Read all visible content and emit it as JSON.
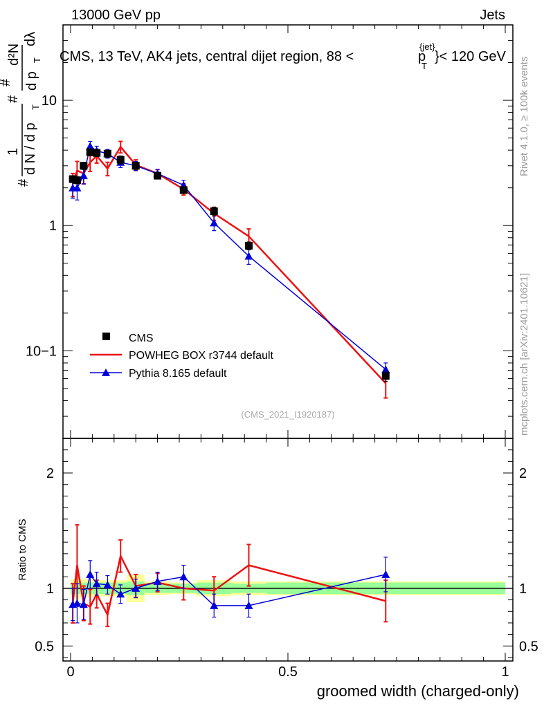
{
  "header": {
    "energy_label": "13000 GeV pp",
    "category_label": "Jets"
  },
  "plot_title": {
    "prefix": "CMS, 13 TeV, AK4 jets, central dijet region, 88 <",
    "p": "p",
    "sub_T": "T",
    "sup_jet": "{jet}",
    "suffix": "}< 120 GeV"
  },
  "side_labels": {
    "rivet": "Rivet 4.1.0, ≥ 100k events",
    "mcplots": "mcplots.cern.ch [arXiv:2401.10621]"
  },
  "watermark": "(CMS_2021_I1920187)",
  "ratio_ylabel": "Ratio to CMS",
  "colors": {
    "data": "#000000",
    "powheg": "#ee1111",
    "pythia": "#0000dd",
    "band_inner": "#99ff99",
    "band_outer": "#ffff99"
  },
  "chart_data": [
    {
      "type": "line",
      "scale": "log",
      "xlim": [
        0,
        1
      ],
      "ylim": [
        0.02,
        40
      ],
      "x_ticks": [
        "0",
        "0.5",
        "1"
      ],
      "y_ticks": [
        "10−1",
        "1",
        "10"
      ],
      "y_tick_values": [
        0.1,
        1,
        10
      ],
      "ylabel": "# 1/(dN/dpT #) d²N/(dpT dλ)",
      "ylabel_parts": {
        "hash": "#",
        "one": "1",
        "dN": "d N / d p",
        "T": "T",
        "d2N": "d²N",
        "dp": "d p",
        "dlam": "dλ"
      },
      "x": [
        0.005,
        0.015,
        0.03,
        0.045,
        0.06,
        0.085,
        0.115,
        0.15,
        0.2,
        0.26,
        0.33,
        0.41,
        0.725
      ],
      "series": [
        {
          "name": "CMS",
          "marker": "square",
          "values": [
            2.35,
            2.3,
            3.0,
            3.85,
            3.8,
            3.75,
            3.35,
            3.0,
            2.5,
            1.92,
            1.3,
            0.69,
            0.063
          ],
          "errors": [
            0.15,
            0.15,
            0.2,
            0.25,
            0.25,
            0.25,
            0.25,
            0.2,
            0.15,
            0.12,
            0.1,
            0.05,
            0.006
          ]
        },
        {
          "name": "POWHEG BOX r3744 default",
          "marker": "line",
          "values": [
            2.15,
            2.75,
            2.6,
            3.2,
            3.6,
            2.85,
            4.25,
            3.05,
            2.6,
            1.95,
            1.25,
            0.82,
            0.055
          ],
          "errors": [
            0.45,
            0.5,
            0.45,
            0.5,
            0.45,
            0.35,
            0.45,
            0.3,
            0.2,
            0.2,
            0.15,
            0.12,
            0.013
          ]
        },
        {
          "name": "Pythia 8.165 default",
          "marker": "triangle",
          "values": [
            2.0,
            2.0,
            2.5,
            4.3,
            3.95,
            3.75,
            3.2,
            3.0,
            2.6,
            2.1,
            1.05,
            0.57,
            0.071
          ],
          "errors": [
            0.35,
            0.4,
            0.35,
            0.4,
            0.35,
            0.3,
            0.3,
            0.25,
            0.2,
            0.2,
            0.14,
            0.08,
            0.009
          ]
        }
      ]
    },
    {
      "type": "line",
      "ylabel": "Ratio to CMS",
      "xlabel": "groomed width (charged-only)",
      "xlim": [
        0,
        1
      ],
      "ylim": [
        0.37,
        2.3
      ],
      "y_ticks": [
        "0.5",
        "1",
        "2"
      ],
      "y_tick_values": [
        0.5,
        1,
        2
      ],
      "x_ticks": [
        "0",
        "0.5",
        "1"
      ],
      "x": [
        0.005,
        0.015,
        0.03,
        0.045,
        0.06,
        0.085,
        0.115,
        0.15,
        0.2,
        0.26,
        0.33,
        0.41,
        0.725
      ],
      "series": [
        {
          "name": "POWHEG BOX r3744 default",
          "values": [
            0.87,
            1.2,
            0.87,
            0.84,
            0.95,
            0.77,
            1.28,
            1.02,
            1.05,
            1.0,
            0.98,
            1.2,
            0.89
          ],
          "errors": [
            0.17,
            0.35,
            0.15,
            0.15,
            0.12,
            0.1,
            0.14,
            0.1,
            0.08,
            0.1,
            0.12,
            0.18,
            0.18
          ]
        },
        {
          "name": "Pythia 8.165 default",
          "values": [
            0.86,
            0.87,
            0.86,
            1.12,
            1.04,
            1.03,
            0.95,
            1.0,
            1.06,
            1.1,
            0.85,
            0.85,
            1.12
          ],
          "errors": [
            0.14,
            0.17,
            0.13,
            0.12,
            0.1,
            0.08,
            0.08,
            0.08,
            0.08,
            0.1,
            0.1,
            0.1,
            0.15
          ]
        }
      ],
      "band_edges": [
        0.0,
        0.01,
        0.02,
        0.04,
        0.05,
        0.07,
        0.1,
        0.13,
        0.17,
        0.23,
        0.29,
        0.37,
        0.45,
        1.0
      ],
      "band_inner": [
        0.05,
        0.05,
        0.05,
        0.05,
        0.05,
        0.05,
        0.05,
        0.06,
        0.04,
        0.04,
        0.05,
        0.04,
        0.05,
        0.05
      ],
      "band_outer": [
        0.08,
        0.1,
        0.08,
        0.07,
        0.07,
        0.07,
        0.07,
        0.12,
        0.06,
        0.05,
        0.07,
        0.06,
        0.06,
        0.08
      ]
    }
  ]
}
